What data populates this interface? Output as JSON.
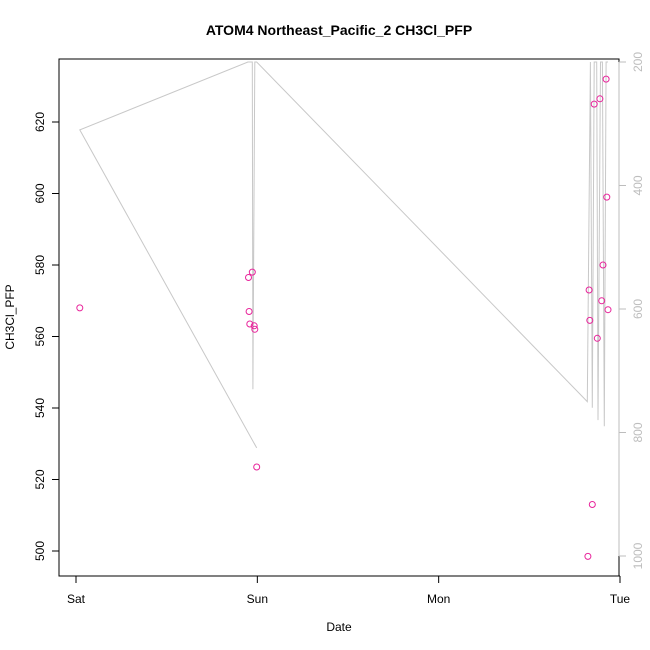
{
  "chart_data": {
    "type": "scatter",
    "title": "ATOM4 Northeast_Pacific_2 CH3Cl_PFP",
    "xlabel": "Date",
    "ylabel": "CH3Cl_PFP",
    "x_ticks": [
      "Sat",
      "Sun",
      "Mon",
      "Tue"
    ],
    "x_range": [
      "Sat 00:00",
      "Tue 00:00"
    ],
    "ylim": [
      494,
      638
    ],
    "y_ticks": [
      500,
      520,
      540,
      560,
      580,
      600,
      620
    ],
    "y2_label": "",
    "y2_range": [
      200,
      1030
    ],
    "y2_reversed": true,
    "y2_ticks": [
      200,
      400,
      600,
      800,
      1000
    ],
    "grid": false,
    "colors": {
      "points": "#e8249b",
      "pressure_line": "#c8c8c8",
      "axis": "#000000",
      "right_axis": "#bdbdbd"
    },
    "series": [
      {
        "kind": "points",
        "x": [
          "Sat 00:30",
          "Sat 22:50",
          "Sat 22:55",
          "Sat 23:00",
          "Sat 23:20",
          "Sat 23:35",
          "Sat 23:40",
          "Sat 23:55",
          "Mon 19:45",
          "Mon 19:55",
          "Mon 20:00",
          "Mon 20:20",
          "Mon 20:35",
          "Mon 21:00",
          "Mon 21:20",
          "Mon 21:35",
          "Mon 21:45",
          "Mon 22:10",
          "Mon 22:15",
          "Mon 22:25"
        ],
        "y": [
          568,
          576.5,
          567,
          563.5,
          578,
          563,
          562,
          523.5,
          498.5,
          573,
          564.5,
          513,
          625,
          559.5,
          626.5,
          570,
          580,
          632,
          599,
          567.5
        ]
      },
      {
        "kind": "pressure-line",
        "axis": "right",
        "x": [
          "Sat 00:30",
          "Sat 23:55",
          "Sat 00:30",
          "Sat 22:45",
          "Sat 23:00",
          "Sat 23:20",
          "Sat 23:25",
          "Sat 23:40",
          "Sat 23:55",
          "Mon 19:40",
          "Mon 20:05",
          "Mon 20:20",
          "Mon 20:35",
          "Mon 20:55",
          "Mon 21:05",
          "Mon 21:25",
          "Mon 21:40",
          "Mon 21:55",
          "Mon 22:10",
          "Mon 22:25"
        ],
        "y": [
          310,
          825,
          310,
          200,
          200,
          200,
          730,
          200,
          200,
          750,
          200,
          760,
          200,
          200,
          780,
          200,
          200,
          790,
          200,
          200
        ]
      }
    ]
  }
}
